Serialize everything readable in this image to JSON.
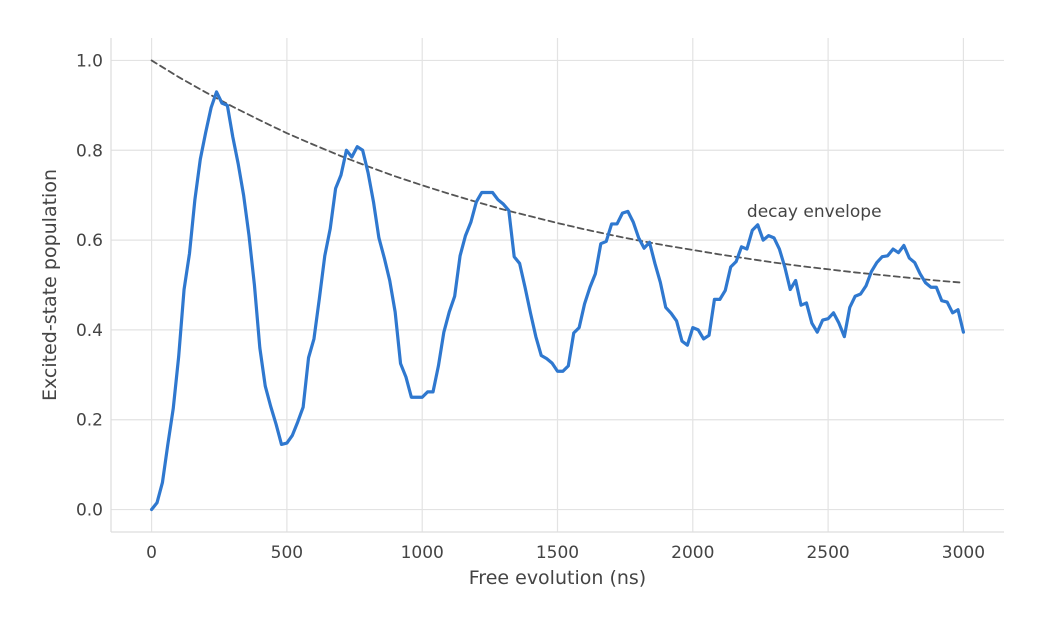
{
  "chart_data": {
    "type": "line",
    "title": "",
    "xlabel": "Free evolution (ns)",
    "ylabel": "Excited-state population",
    "xlim": [
      -150,
      3150
    ],
    "ylim": [
      -0.05,
      1.05
    ],
    "xticks": [
      0,
      500,
      1000,
      1500,
      2000,
      2500,
      3000
    ],
    "xtick_labels": [
      "0",
      "500",
      "1000",
      "1500",
      "2000",
      "2500",
      "3000"
    ],
    "yticks": [
      0.0,
      0.2,
      0.4,
      0.6,
      0.8,
      1.0
    ],
    "ytick_labels": [
      "0.0",
      "0.2",
      "0.4",
      "0.6",
      "0.8",
      "1.0"
    ],
    "grid": true,
    "series": [
      {
        "style": "solid",
        "color": "#2f78cf",
        "x": [
          0,
          20,
          40,
          60,
          80,
          100,
          120,
          140,
          160,
          180,
          200,
          220,
          240,
          260,
          280,
          300,
          320,
          340,
          360,
          380,
          400,
          420,
          440,
          460,
          480,
          500,
          520,
          540,
          560,
          580,
          600,
          620,
          640,
          660,
          680,
          700,
          720,
          740,
          760,
          780,
          800,
          820,
          840,
          860,
          880,
          900,
          920,
          940,
          960,
          980,
          1000,
          1020,
          1040,
          1060,
          1080,
          1100,
          1120,
          1140,
          1160,
          1180,
          1200,
          1220,
          1240,
          1260,
          1280,
          1300,
          1320,
          1340,
          1360,
          1380,
          1400,
          1420,
          1440,
          1460,
          1480,
          1500,
          1520,
          1540,
          1560,
          1580,
          1600,
          1620,
          1640,
          1660,
          1680,
          1700,
          1720,
          1740,
          1760,
          1780,
          1800,
          1820,
          1840,
          1860,
          1880,
          1900,
          1920,
          1940,
          1960,
          1980,
          2000,
          2020,
          2040,
          2060,
          2080,
          2100,
          2120,
          2140,
          2160,
          2180,
          2200,
          2220,
          2240,
          2260,
          2280,
          2300,
          2320,
          2340,
          2360,
          2380,
          2400,
          2420,
          2440,
          2460,
          2480,
          2500,
          2520,
          2540,
          2560,
          2580,
          2600,
          2620,
          2640,
          2660,
          2680,
          2700,
          2720,
          2740,
          2760,
          2780,
          2800,
          2820,
          2840,
          2860,
          2880,
          2900,
          2920,
          2940,
          2960,
          2980,
          3000
        ],
        "y": [
          0.0,
          0.015,
          0.06,
          0.145,
          0.225,
          0.34,
          0.49,
          0.57,
          0.69,
          0.78,
          0.84,
          0.895,
          0.93,
          0.905,
          0.9,
          0.83,
          0.77,
          0.7,
          0.61,
          0.5,
          0.36,
          0.275,
          0.23,
          0.19,
          0.145,
          0.148,
          0.165,
          0.195,
          0.228,
          0.338,
          0.38,
          0.47,
          0.565,
          0.625,
          0.715,
          0.745,
          0.8,
          0.785,
          0.808,
          0.8,
          0.75,
          0.685,
          0.605,
          0.56,
          0.51,
          0.44,
          0.325,
          0.295,
          0.25,
          0.25,
          0.25,
          0.262,
          0.262,
          0.32,
          0.395,
          0.44,
          0.475,
          0.565,
          0.61,
          0.64,
          0.685,
          0.706,
          0.706,
          0.706,
          0.69,
          0.68,
          0.666,
          0.563,
          0.548,
          0.495,
          0.438,
          0.385,
          0.343,
          0.336,
          0.326,
          0.308,
          0.308,
          0.32,
          0.393,
          0.405,
          0.458,
          0.495,
          0.525,
          0.592,
          0.597,
          0.636,
          0.636,
          0.66,
          0.664,
          0.64,
          0.605,
          0.582,
          0.595,
          0.548,
          0.506,
          0.45,
          0.437,
          0.42,
          0.375,
          0.366,
          0.405,
          0.4,
          0.38,
          0.388,
          0.468,
          0.468,
          0.488,
          0.54,
          0.552,
          0.585,
          0.58,
          0.622,
          0.634,
          0.6,
          0.61,
          0.605,
          0.58,
          0.54,
          0.49,
          0.51,
          0.455,
          0.46,
          0.415,
          0.395,
          0.422,
          0.425,
          0.438,
          0.415,
          0.385,
          0.45,
          0.475,
          0.48,
          0.498,
          0.53,
          0.55,
          0.563,
          0.565,
          0.58,
          0.572,
          0.588,
          0.56,
          0.55,
          0.525,
          0.505,
          0.495,
          0.495,
          0.465,
          0.462,
          0.438,
          0.445,
          0.395
        ]
      },
      {
        "style": "dashed",
        "color": "#555555",
        "x": [
          0,
          100,
          200,
          300,
          400,
          500,
          600,
          700,
          800,
          900,
          1000,
          1100,
          1200,
          1300,
          1400,
          1500,
          1600,
          1700,
          1800,
          1900,
          2000,
          2100,
          2200,
          2300,
          2400,
          2500,
          2600,
          2700,
          2800,
          2900,
          3000
        ],
        "y": [
          1.0,
          0.963,
          0.929,
          0.897,
          0.867,
          0.838,
          0.812,
          0.787,
          0.764,
          0.742,
          0.722,
          0.703,
          0.685,
          0.668,
          0.653,
          0.638,
          0.624,
          0.611,
          0.599,
          0.588,
          0.578,
          0.568,
          0.559,
          0.55,
          0.542,
          0.535,
          0.528,
          0.522,
          0.516,
          0.51,
          0.505
        ]
      }
    ],
    "annotations": [
      {
        "text": "decay envelope",
        "x": 2200,
        "y": 0.665
      }
    ]
  }
}
